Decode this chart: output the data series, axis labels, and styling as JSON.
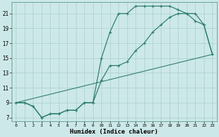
{
  "xlabel": "Humidex (Indice chaleur)",
  "background_color": "#cce8e8",
  "line_color": "#2e7d6e",
  "grid_color": "#aacece",
  "xlim": [
    -0.5,
    23.5
  ],
  "ylim": [
    6.5,
    22.5
  ],
  "xticks": [
    0,
    1,
    2,
    3,
    4,
    5,
    6,
    7,
    8,
    9,
    10,
    11,
    12,
    13,
    14,
    15,
    16,
    17,
    18,
    19,
    20,
    21,
    22,
    23
  ],
  "yticks": [
    7,
    9,
    11,
    13,
    15,
    17,
    19,
    21
  ],
  "curve1_x": [
    0,
    1,
    2,
    3,
    4,
    5,
    6,
    7,
    8,
    9,
    10,
    11,
    12,
    13,
    14,
    15,
    16,
    17,
    18,
    19,
    20,
    21,
    22,
    23
  ],
  "curve1_y": [
    9,
    9,
    8.5,
    7,
    7.5,
    7.5,
    8,
    8,
    9,
    9,
    15,
    18.5,
    21,
    21,
    22,
    22,
    22,
    22,
    22,
    21.5,
    21,
    20,
    19.5,
    15.5
  ],
  "curve2_x": [
    0,
    1,
    2,
    3,
    4,
    5,
    6,
    7,
    8,
    9,
    10,
    11,
    12,
    13,
    14,
    15,
    16,
    17,
    18,
    19,
    20,
    21,
    22,
    23
  ],
  "curve2_y": [
    9,
    9,
    8.5,
    7,
    7.5,
    7.5,
    8,
    8,
    9,
    9,
    12,
    14,
    14,
    14.5,
    16,
    17,
    18.5,
    19.5,
    20.5,
    21,
    21,
    21,
    19.5,
    15.5
  ],
  "curve3_x": [
    0,
    23
  ],
  "curve3_y": [
    9,
    15.5
  ],
  "figsize": [
    3.2,
    2.0
  ],
  "dpi": 100
}
